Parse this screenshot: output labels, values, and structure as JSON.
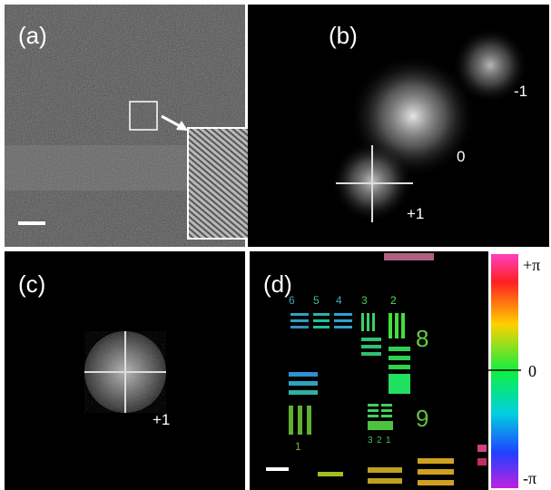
{
  "panels": [
    {
      "label": "(a)"
    },
    {
      "label": "(b)",
      "orders": [
        "-1",
        "0",
        "+1"
      ]
    },
    {
      "label": "(c)",
      "orders": [
        "+1"
      ]
    },
    {
      "label": "(d)",
      "target_numbers": [
        "6",
        "5",
        "4",
        "3",
        "2",
        "8",
        "9",
        "1",
        "3",
        "2",
        "1"
      ]
    }
  ],
  "colorbar": {
    "labels": [
      "+π",
      "0",
      "-π"
    ]
  }
}
